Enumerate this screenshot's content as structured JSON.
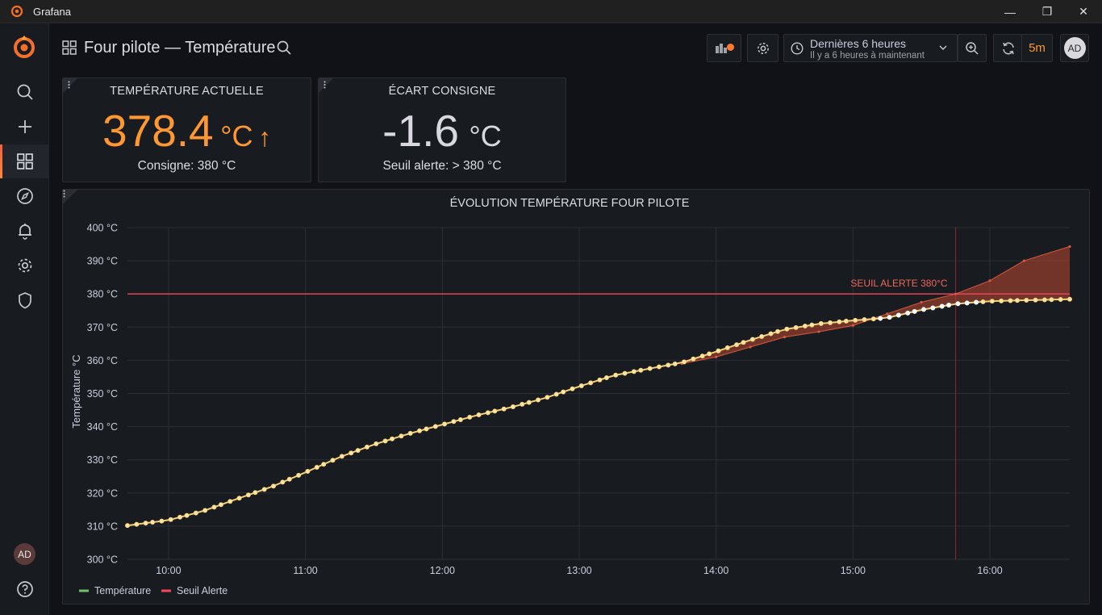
{
  "window": {
    "title": "Grafana",
    "min": "—",
    "max": "❐",
    "close": "✕"
  },
  "sidebar": {
    "items": [
      {
        "name": "search-icon"
      },
      {
        "name": "plus-icon"
      },
      {
        "name": "dashboards-icon",
        "active": true
      },
      {
        "name": "explore-icon"
      },
      {
        "name": "alerting-icon"
      },
      {
        "name": "gear-icon"
      },
      {
        "name": "shield-icon"
      }
    ],
    "avatar": "AD",
    "help": "help-icon"
  },
  "topbar": {
    "dashboard_title": "Four pilote — Température",
    "time_range": "Dernières 6 heures",
    "time_range_detail": "Il y a 6 heures à maintenant",
    "refresh_interval": "5m",
    "avatar": "AD"
  },
  "stat_current": {
    "title": "TEMPÉRATURE ACTUELLE",
    "value": "378.4",
    "unit": "°C",
    "trend": "↑",
    "subtitle": "Consigne: 380 °C",
    "color": "#ff9830"
  },
  "stat_deviation": {
    "title": "ÉCART CONSIGNE",
    "value": "-1.6",
    "unit": "°C",
    "subtitle": "Seuil alerte: > 380 °C",
    "color": "#d8d9e0"
  },
  "chart_panel": {
    "title": "ÉVOLUTION TEMPÉRATURE FOUR PILOTE"
  },
  "chart_data": {
    "type": "line",
    "title": "ÉVOLUTION TEMPÉRATURE FOUR PILOTE",
    "ylabel": "Température °C",
    "xlabel": "",
    "ylim": [
      300,
      400
    ],
    "y_ticks": [
      "300 °C",
      "310 °C",
      "320 °C",
      "330 °C",
      "340 °C",
      "350 °C",
      "360 °C",
      "370 °C",
      "380 °C",
      "390 °C",
      "400 °C"
    ],
    "x_range": [
      "09:42",
      "16:35"
    ],
    "x_ticks": [
      "10:00",
      "11:00",
      "12:00",
      "13:00",
      "14:00",
      "15:00",
      "16:00"
    ],
    "grid": true,
    "legend_position": "bottom-left",
    "threshold": {
      "value": 380,
      "label": "SEUIL ALERTE 380°C",
      "color": "#f2495c"
    },
    "marker_time": "15:45",
    "series": [
      {
        "name": "Température",
        "color": "#fade9a",
        "x": [
          "09:42",
          "10:00",
          "10:15",
          "10:30",
          "10:45",
          "11:00",
          "11:15",
          "11:30",
          "11:45",
          "12:00",
          "12:15",
          "12:30",
          "12:45",
          "13:00",
          "13:15",
          "13:30",
          "13:45",
          "14:00",
          "14:15",
          "14:30",
          "14:45",
          "15:00",
          "15:15",
          "15:30",
          "15:45",
          "16:00",
          "16:15",
          "16:35"
        ],
        "values": [
          310.2,
          311.8,
          314.5,
          318.2,
          321.8,
          326.2,
          330.8,
          334.6,
          337.8,
          340.6,
          343.4,
          345.8,
          348.6,
          352.1,
          355.4,
          357.4,
          359.3,
          362.6,
          366.1,
          369.3,
          371.0,
          372.0,
          372.8,
          375.2,
          377.0,
          377.8,
          378.1,
          378.4
        ]
      },
      {
        "name": "Seuil Alerte",
        "color": "#f2495c",
        "x": [
          "09:42",
          "16:35"
        ],
        "values": [
          380,
          380
        ]
      },
      {
        "name": "",
        "color": "#c4533a",
        "x": [
          "13:45",
          "14:00",
          "14:15",
          "14:30",
          "14:45",
          "15:00",
          "15:15",
          "15:30",
          "15:45",
          "16:00",
          "16:15",
          "16:35"
        ],
        "values": [
          359.0,
          361.0,
          364.0,
          367.0,
          368.6,
          370.5,
          374.0,
          377.5,
          380.0,
          384.0,
          390.0,
          394.3
        ]
      }
    ]
  }
}
